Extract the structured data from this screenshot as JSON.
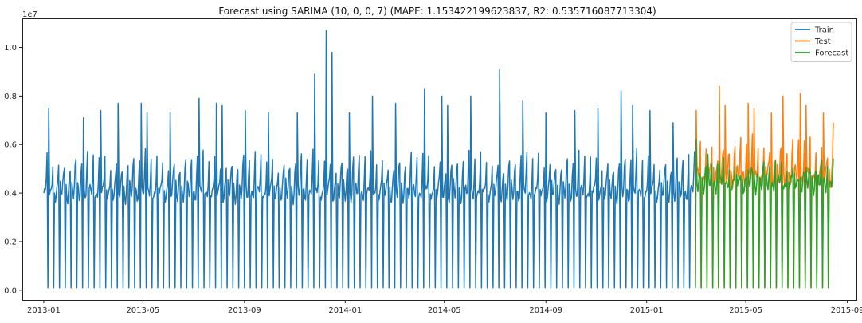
{
  "chart_data": {
    "type": "line",
    "title": "Forecast using SARIMA (10, 0, 0, 7) (MAPE: 1.153422199623837, R2: 0.535716087713304)",
    "xlabel": "",
    "ylabel": "",
    "y_offset_label": "1e7",
    "xlim": [
      "2012-12-06",
      "2015-09-12"
    ],
    "ylim": [
      -400000,
      11200000
    ],
    "x_ticks": [
      "2013-01",
      "2013-05",
      "2013-09",
      "2014-01",
      "2014-05",
      "2014-09",
      "2015-01",
      "2015-05",
      "2015-09"
    ],
    "y_ticks": [
      0,
      2000000,
      4000000,
      6000000,
      8000000,
      10000000
    ],
    "y_tick_labels": [
      "0.0",
      "0.2",
      "0.4",
      "0.6",
      "0.8",
      "1.0"
    ],
    "grid": false,
    "legend_position": "top-right",
    "series": [
      {
        "name": "Train",
        "color": "#1f77b4",
        "start": "2013-01-01",
        "end": "2015-02-28",
        "weekly_profile": [
          4200000,
          4000000,
          3900000,
          4100000,
          4700000,
          5300000,
          100000
        ],
        "peaks": [
          [
            "2013-01-07",
            7500000
          ],
          [
            "2013-02-18",
            7100000
          ],
          [
            "2013-03-11",
            7400000
          ],
          [
            "2013-04-01",
            7700000
          ],
          [
            "2013-04-29",
            7700000
          ],
          [
            "2013-05-06",
            7300000
          ],
          [
            "2013-06-03",
            7300000
          ],
          [
            "2013-07-08",
            7900000
          ],
          [
            "2013-07-29",
            7700000
          ],
          [
            "2013-08-05",
            7600000
          ],
          [
            "2013-09-02",
            7400000
          ],
          [
            "2013-09-30",
            7300000
          ],
          [
            "2013-11-04",
            7300000
          ],
          [
            "2013-11-25",
            8900000
          ],
          [
            "2013-12-09",
            10700000
          ],
          [
            "2013-12-16",
            9800000
          ],
          [
            "2014-01-06",
            7300000
          ],
          [
            "2014-02-03",
            8000000
          ],
          [
            "2014-03-03",
            7700000
          ],
          [
            "2014-04-07",
            8300000
          ],
          [
            "2014-04-28",
            8000000
          ],
          [
            "2014-05-05",
            7600000
          ],
          [
            "2014-06-02",
            8000000
          ],
          [
            "2014-07-07",
            9100000
          ],
          [
            "2014-08-04",
            7800000
          ],
          [
            "2014-09-01",
            7300000
          ],
          [
            "2014-10-06",
            7400000
          ],
          [
            "2014-11-03",
            7500000
          ],
          [
            "2014-12-01",
            8200000
          ],
          [
            "2014-12-15",
            7600000
          ],
          [
            "2015-01-05",
            7400000
          ],
          [
            "2015-02-02",
            6900000
          ]
        ]
      },
      {
        "name": "Test",
        "color": "#ff7f0e",
        "start": "2015-03-01",
        "end": "2015-08-15",
        "weekly_profile": [
          4900000,
          4700000,
          4600000,
          4700000,
          5300000,
          5900000,
          100000
        ],
        "peaks": [
          [
            "2015-03-02",
            7400000
          ],
          [
            "2015-03-30",
            8400000
          ],
          [
            "2015-04-06",
            7600000
          ],
          [
            "2015-05-04",
            7700000
          ],
          [
            "2015-05-11",
            7500000
          ],
          [
            "2015-06-01",
            7300000
          ],
          [
            "2015-06-15",
            8000000
          ],
          [
            "2015-07-06",
            8100000
          ],
          [
            "2015-07-13",
            7600000
          ],
          [
            "2015-08-03",
            7300000
          ],
          [
            "2015-08-15",
            6900000
          ]
        ]
      },
      {
        "name": "Forecast",
        "color": "#2ca02c",
        "start": "2015-03-01",
        "end": "2015-08-15",
        "weekly_profile": [
          4600000,
          4400000,
          4300000,
          4400000,
          4700000,
          5000000,
          100000
        ],
        "peaks": [
          [
            "2015-03-02",
            6200000
          ],
          [
            "2015-03-16",
            5600000
          ],
          [
            "2015-03-30",
            5300000
          ]
        ]
      }
    ]
  }
}
